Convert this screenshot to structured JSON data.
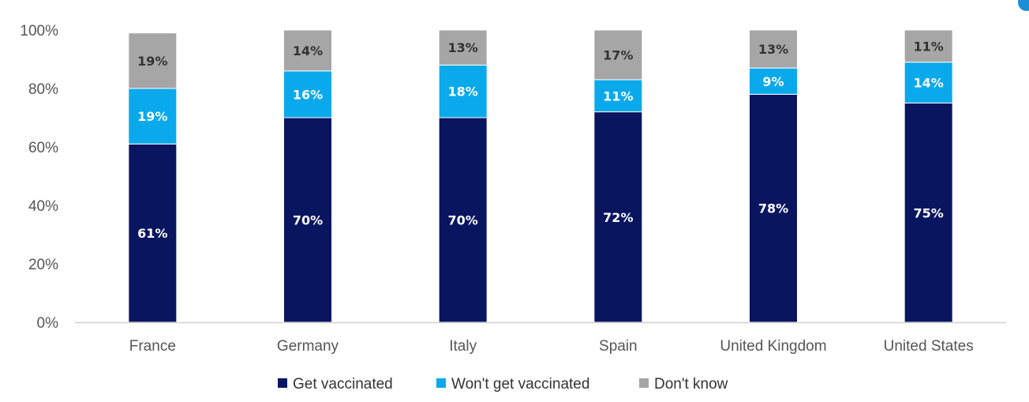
{
  "chart_data": {
    "type": "bar",
    "stacked": true,
    "categories": [
      "France",
      "Germany",
      "Italy",
      "Spain",
      "United Kingdom",
      "United States"
    ],
    "series": [
      {
        "name": "Get vaccinated",
        "color": "#0a1560",
        "label_color": "#ffffff",
        "values": [
          61,
          70,
          70,
          72,
          78,
          75
        ],
        "labels": [
          "61%",
          "70%",
          "70%",
          "72%",
          "78%",
          "75%"
        ]
      },
      {
        "name": "Won't get vaccinated",
        "color": "#0aa9ec",
        "label_color": "#ffffff",
        "values": [
          19,
          16,
          18,
          11,
          9,
          14
        ],
        "labels": [
          "19%",
          "16%",
          "18%",
          "11%",
          "9%",
          "14%"
        ]
      },
      {
        "name": "Don't know",
        "color": "#a6a6a6",
        "label_color": "#333333",
        "values": [
          19,
          14,
          13,
          17,
          13,
          11
        ],
        "labels": [
          "19%",
          "14%",
          "13%",
          "17%",
          "13%",
          "11%"
        ]
      }
    ],
    "ylim": [
      0,
      100
    ],
    "yticks": [
      0,
      20,
      40,
      60,
      80,
      100
    ],
    "ytick_labels": [
      "0%",
      "20%",
      "40%",
      "60%",
      "80%",
      "100%"
    ],
    "grid": false,
    "legend_position": "bottom",
    "title": "",
    "xlabel": "",
    "ylabel": ""
  },
  "colors": {
    "axis": "#d0d0d0",
    "accent": "#1a8fd6"
  }
}
